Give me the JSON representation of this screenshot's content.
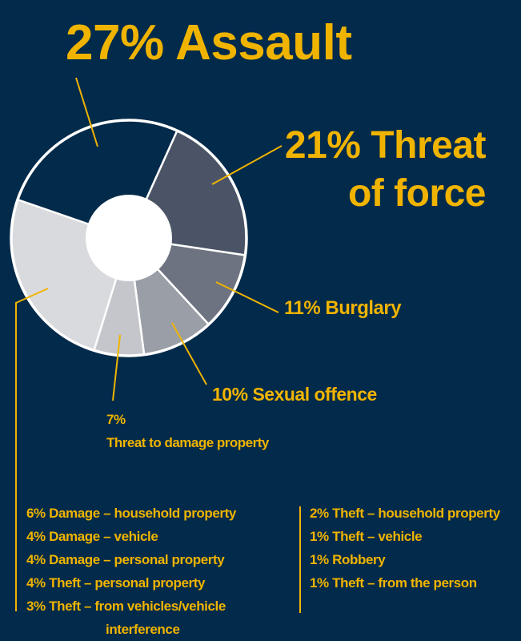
{
  "chart_data": {
    "type": "pie",
    "categories": [
      "Assault",
      "Threat of force",
      "Burglary",
      "Sexual offence",
      "Threat to damage property",
      "Damage – household property",
      "Damage – vehicle",
      "Damage – personal property",
      "Theft – personal property",
      "Theft – from vehicles/vehicle interference",
      "Theft – household property",
      "Theft – vehicle",
      "Robbery",
      "Theft – from the person"
    ],
    "values": [
      27,
      21,
      11,
      10,
      7,
      6,
      4,
      4,
      4,
      3,
      2,
      1,
      1,
      1
    ],
    "value_labels": [
      "27%",
      "21%",
      "11%",
      "10%",
      "7%",
      "6%",
      "4%",
      "4%",
      "4%",
      "3%",
      "2%",
      "1%",
      "1%",
      "1%"
    ],
    "colors": [
      "#022a4a",
      "#4a5466",
      "#6d7380",
      "#9a9ea6",
      "#c4c6cb",
      "#d9dadd",
      "#d9dadd",
      "#d9dadd",
      "#d9dadd",
      "#d9dadd",
      "#d9dadd",
      "#d9dadd",
      "#d9dadd",
      "#d9dadd"
    ]
  }
}
